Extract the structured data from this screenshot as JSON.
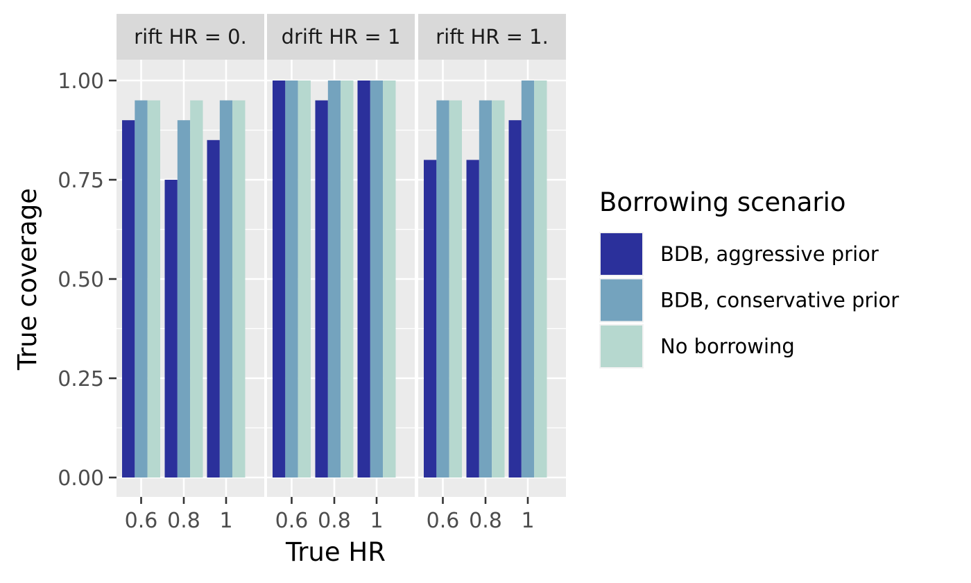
{
  "chart_data": {
    "type": "bar",
    "xlabel": "True HR",
    "ylabel": "True coverage",
    "ylim": [
      0,
      1.05
    ],
    "y_ticks": [
      {
        "value": 0,
        "label": "0.00"
      },
      {
        "value": 0.25,
        "label": "0.25"
      },
      {
        "value": 0.5,
        "label": "0.50"
      },
      {
        "value": 0.75,
        "label": "0.75"
      },
      {
        "value": 1,
        "label": "1.00"
      }
    ],
    "categories": [
      "0.6",
      "0.8",
      "1"
    ],
    "legend": {
      "title": "Borrowing scenario",
      "placement": "right",
      "entries": [
        {
          "name": "BDB, aggressive prior",
          "color": "#2b309b"
        },
        {
          "name": "BDB, conservative prior",
          "color": "#74a3be"
        },
        {
          "name": "No borrowing",
          "color": "#b6d8cf"
        }
      ]
    },
    "panels": [
      {
        "strip_label": "rift HR = 0.",
        "series": [
          {
            "name": "BDB, aggressive prior",
            "values": [
              0.9,
              0.75,
              0.85
            ]
          },
          {
            "name": "BDB, conservative prior",
            "values": [
              0.95,
              0.9,
              0.95
            ]
          },
          {
            "name": "No borrowing",
            "values": [
              0.95,
              0.95,
              0.95
            ]
          }
        ]
      },
      {
        "strip_label": "drift HR = 1",
        "series": [
          {
            "name": "BDB, aggressive prior",
            "values": [
              1.0,
              0.95,
              1.0
            ]
          },
          {
            "name": "BDB, conservative prior",
            "values": [
              1.0,
              1.0,
              1.0
            ]
          },
          {
            "name": "No borrowing",
            "values": [
              1.0,
              1.0,
              1.0
            ]
          }
        ]
      },
      {
        "strip_label": "rift HR = 1.",
        "series": [
          {
            "name": "BDB, aggressive prior",
            "values": [
              0.8,
              0.8,
              0.9
            ]
          },
          {
            "name": "BDB, conservative prior",
            "values": [
              0.95,
              0.95,
              1.0
            ]
          },
          {
            "name": "No borrowing",
            "values": [
              0.95,
              0.95,
              1.0
            ]
          }
        ]
      }
    ],
    "grid": true,
    "panel_background": "#ebebeb",
    "strip_background": "#d9d9d9"
  }
}
